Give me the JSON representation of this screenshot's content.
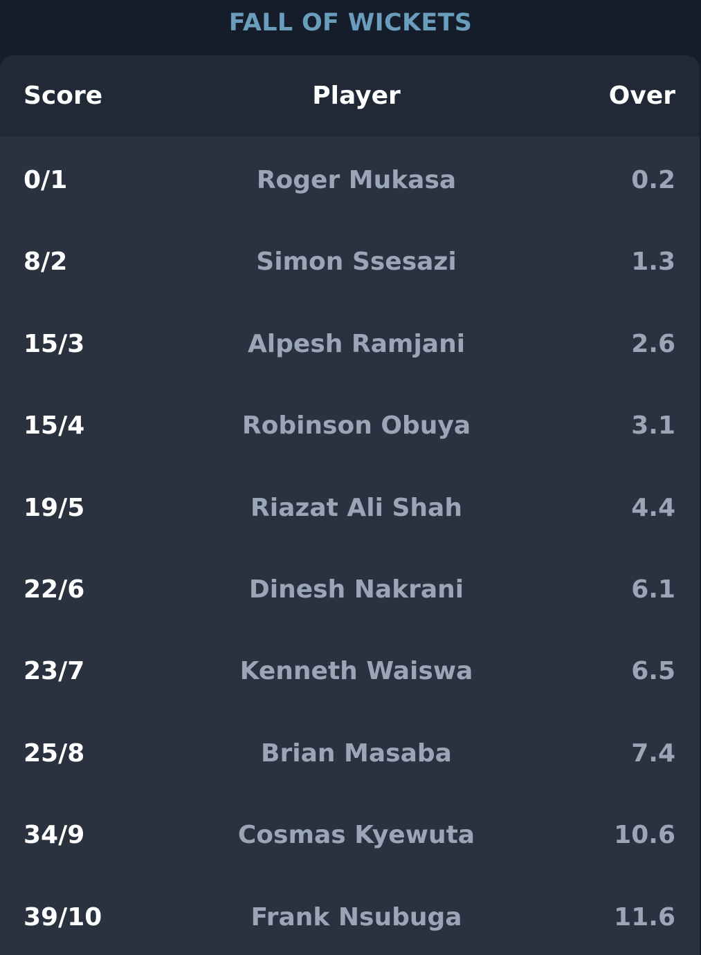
{
  "title": "FALL OF WICKETS",
  "table": {
    "headers": {
      "score": "Score",
      "player": "Player",
      "over": "Over"
    },
    "rows": [
      {
        "score": "0/1",
        "player": "Roger Mukasa",
        "over": "0.2"
      },
      {
        "score": "8/2",
        "player": "Simon Ssesazi",
        "over": "1.3"
      },
      {
        "score": "15/3",
        "player": "Alpesh Ramjani",
        "over": "2.6"
      },
      {
        "score": "15/4",
        "player": "Robinson Obuya",
        "over": "3.1"
      },
      {
        "score": "19/5",
        "player": "Riazat Ali Shah",
        "over": "4.4"
      },
      {
        "score": "22/6",
        "player": "Dinesh Nakrani",
        "over": "6.1"
      },
      {
        "score": "23/7",
        "player": "Kenneth Waiswa",
        "over": "6.5"
      },
      {
        "score": "25/8",
        "player": "Brian Masaba",
        "over": "7.4"
      },
      {
        "score": "34/9",
        "player": "Cosmas Kyewuta",
        "over": "10.6"
      },
      {
        "score": "39/10",
        "player": "Frank Nsubuga",
        "over": "11.6"
      }
    ]
  },
  "colors": {
    "page_background": "#151d2a",
    "card_background": "#2a323f",
    "header_background": "#212937",
    "title_accent": "#6a9cbc",
    "primary_text": "#ffffff",
    "secondary_text": "#9aa5b8"
  }
}
